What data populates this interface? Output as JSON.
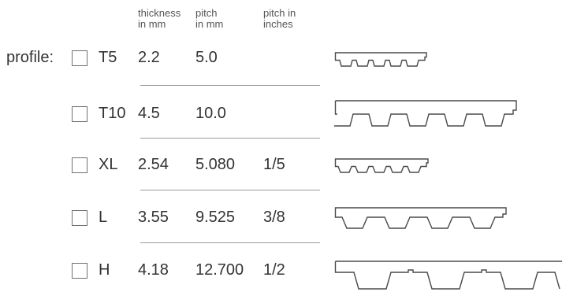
{
  "headers": {
    "thickness": [
      "thickness",
      "in mm"
    ],
    "pitch": [
      "pitch",
      "in mm"
    ],
    "pitch_inches": [
      "pitch in",
      "inches"
    ]
  },
  "profile_label": "profile:",
  "rows": [
    {
      "name": "T5",
      "thickness": "2.2",
      "pitch_mm": "5.0",
      "pitch_in": "",
      "belt_icon": "t5-belt-profile-icon"
    },
    {
      "name": "T10",
      "thickness": "4.5",
      "pitch_mm": "10.0",
      "pitch_in": "",
      "belt_icon": "t10-belt-profile-icon"
    },
    {
      "name": "XL",
      "thickness": "2.54",
      "pitch_mm": "5.080",
      "pitch_in": "1/5",
      "belt_icon": "xl-belt-profile-icon"
    },
    {
      "name": "L",
      "thickness": "3.55",
      "pitch_mm": "9.525",
      "pitch_in": "3/8",
      "belt_icon": "l-belt-profile-icon"
    },
    {
      "name": "H",
      "thickness": "4.18",
      "pitch_mm": "12.700",
      "pitch_in": "1/2",
      "belt_icon": "h-belt-profile-icon"
    }
  ]
}
